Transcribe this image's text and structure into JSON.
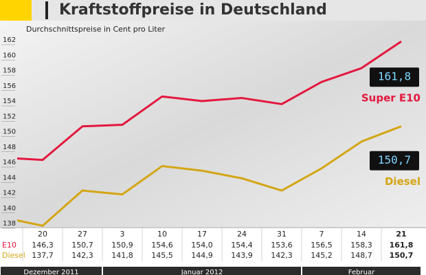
{
  "chart_data": {
    "type": "line",
    "title": "Kraftstoffpreise in Deutschland",
    "subtitle": "Durchschnittspreise in Cent pro Liter",
    "categories": [
      null,
      "20",
      "27",
      "3",
      "10",
      "17",
      "24",
      "31",
      "7",
      "14",
      "21"
    ],
    "series": [
      {
        "name": "Super E10",
        "color": "#e3173e",
        "values": [
          146.6,
          146.3,
          150.7,
          150.9,
          154.6,
          154.0,
          154.4,
          153.6,
          156.5,
          158.3,
          161.8
        ],
        "value_labels": [
          null,
          "146,3",
          "150,7",
          "150,9",
          "154,6",
          "154,0",
          "154,4",
          "153,6",
          "156,5",
          "158,3",
          "161,8"
        ]
      },
      {
        "name": "Diesel",
        "color": "#d4a514",
        "values": [
          138.8,
          137.7,
          142.3,
          141.8,
          145.5,
          144.9,
          143.9,
          142.3,
          145.2,
          148.7,
          150.7
        ],
        "value_labels": [
          null,
          "137,7",
          "142,3",
          "141,8",
          "145,5",
          "144,9",
          "143,9",
          "142,3",
          "145,2",
          "148,7",
          "150,7"
        ]
      }
    ],
    "table_labels": [
      "E10",
      "Diesel"
    ],
    "months": [
      "Dezember 2011",
      "Januar 2012",
      "Februar"
    ],
    "ylim": [
      138,
      162
    ],
    "yticks": [
      138,
      140,
      142,
      144,
      146,
      148,
      150,
      152,
      154,
      156,
      158,
      160,
      162
    ],
    "grid": false
  }
}
